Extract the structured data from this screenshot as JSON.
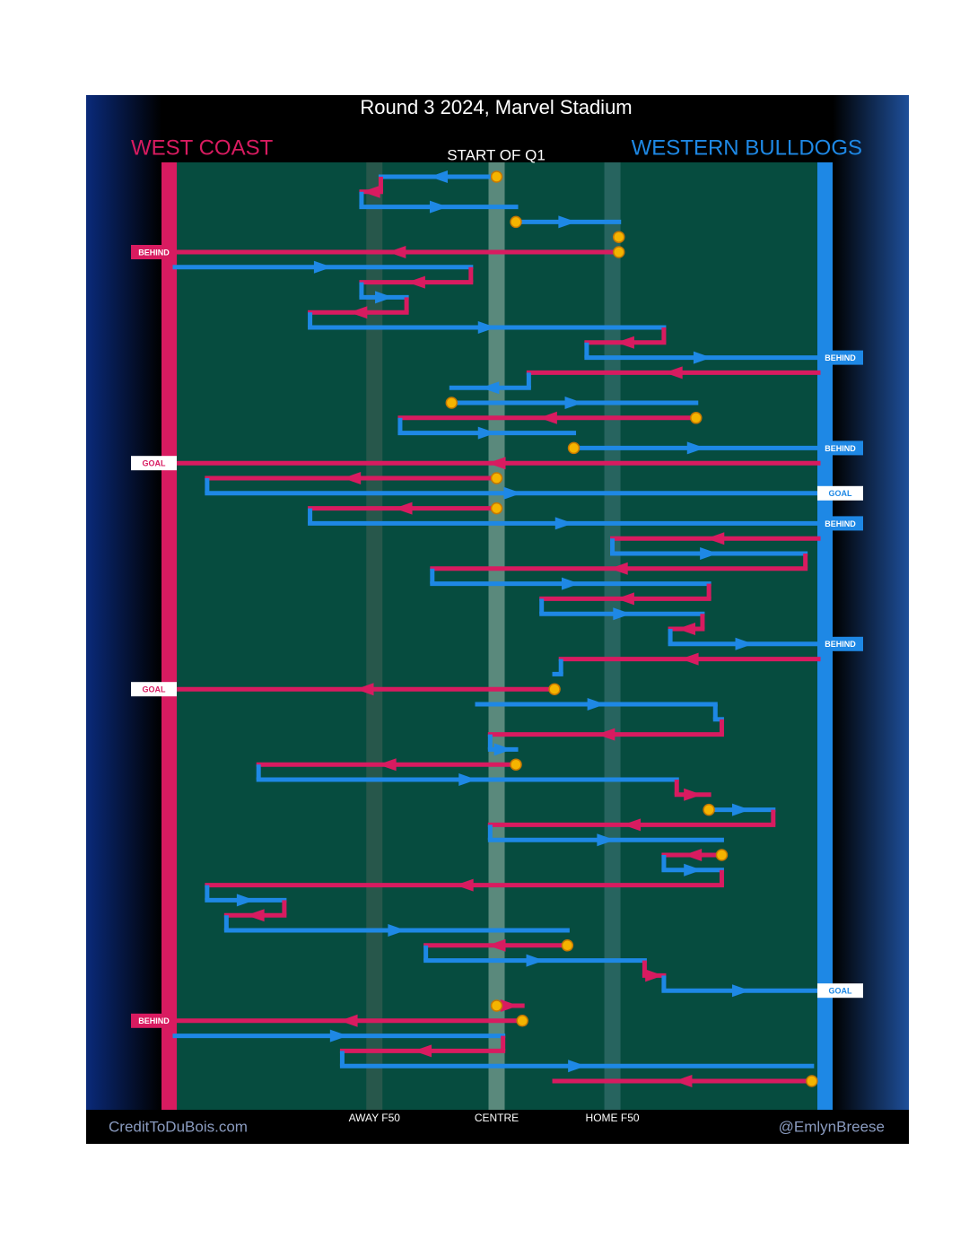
{
  "title": "Round 3 2024, Marvel Stadium",
  "teams": [
    {
      "name": "WEST COAST",
      "color": "#d81b60"
    },
    {
      "name": "WESTERN BULLDOGS",
      "color": "#1e88e5"
    }
  ],
  "period_label": "START OF Q1",
  "field_markers": [
    {
      "label": "AWAY F50",
      "value": 31
    },
    {
      "label": "CENTRE",
      "value": 50
    },
    {
      "label": "HOME F50",
      "value": 68
    }
  ],
  "credits": {
    "left": "CreditToDuBois.com",
    "right": "@EmlynBreese"
  },
  "chains": [
    {
      "team": 1,
      "from": 50,
      "to": 32,
      "stoppage": true
    },
    {
      "team": 0,
      "from": 32,
      "to": 29
    },
    {
      "team": 1,
      "from": 29,
      "to": 53
    },
    {
      "team": 1,
      "from": 53,
      "to": 69,
      "stoppage": true
    },
    {
      "team": 0,
      "from": 69,
      "to": 69,
      "stoppage": true
    },
    {
      "team": 0,
      "from": 69,
      "to": 0,
      "stoppage": true,
      "result": "BEHIND"
    },
    {
      "team": 1,
      "from": 0,
      "to": 46
    },
    {
      "team": 0,
      "from": 46,
      "to": 29
    },
    {
      "team": 1,
      "from": 29,
      "to": 36
    },
    {
      "team": 0,
      "from": 36,
      "to": 21
    },
    {
      "team": 1,
      "from": 21,
      "to": 76
    },
    {
      "team": 0,
      "from": 76,
      "to": 64
    },
    {
      "team": 1,
      "from": 64,
      "to": 100,
      "result": "BEHIND"
    },
    {
      "team": 0,
      "from": 100,
      "to": 55
    },
    {
      "team": 1,
      "from": 55,
      "to": 43
    },
    {
      "team": 1,
      "from": 43,
      "to": 81,
      "stoppage": true
    },
    {
      "team": 0,
      "from": 81,
      "to": 35,
      "stoppage": true
    },
    {
      "team": 1,
      "from": 35,
      "to": 62
    },
    {
      "team": 1,
      "from": 62,
      "to": 100,
      "stoppage": true,
      "result": "BEHIND"
    },
    {
      "team": 0,
      "from": 100,
      "to": 0,
      "result": "GOAL"
    },
    {
      "team": 0,
      "from": 50,
      "to": 5,
      "stoppage": true
    },
    {
      "team": 1,
      "from": 5,
      "to": 100,
      "result": "GOAL"
    },
    {
      "team": 0,
      "from": 50,
      "to": 21,
      "stoppage": true
    },
    {
      "team": 1,
      "from": 21,
      "to": 100,
      "result": "BEHIND"
    },
    {
      "team": 0,
      "from": 100,
      "to": 68
    },
    {
      "team": 1,
      "from": 68,
      "to": 98
    },
    {
      "team": 0,
      "from": 98,
      "to": 40
    },
    {
      "team": 1,
      "from": 40,
      "to": 83
    },
    {
      "team": 0,
      "from": 83,
      "to": 57
    },
    {
      "team": 1,
      "from": 57,
      "to": 82
    },
    {
      "team": 0,
      "from": 82,
      "to": 77
    },
    {
      "team": 1,
      "from": 77,
      "to": 100,
      "result": "BEHIND"
    },
    {
      "team": 0,
      "from": 100,
      "to": 60
    },
    {
      "team": 1,
      "from": 60,
      "to": 59
    },
    {
      "team": 0,
      "from": 59,
      "to": 0,
      "stoppage": true,
      "result": "GOAL"
    },
    {
      "team": 1,
      "from": 47,
      "to": 84
    },
    {
      "team": 1,
      "from": 84,
      "to": 85
    },
    {
      "team": 0,
      "from": 85,
      "to": 49
    },
    {
      "team": 1,
      "from": 49,
      "to": 53
    },
    {
      "team": 0,
      "from": 53,
      "to": 13,
      "stoppage": true
    },
    {
      "team": 1,
      "from": 13,
      "to": 78
    },
    {
      "team": 0,
      "from": 78,
      "to": 83
    },
    {
      "team": 1,
      "from": 83,
      "to": 93,
      "stoppage": true
    },
    {
      "team": 0,
      "from": 93,
      "to": 49
    },
    {
      "team": 1,
      "from": 49,
      "to": 85
    },
    {
      "team": 0,
      "from": 85,
      "to": 76,
      "stoppage": true
    },
    {
      "team": 1,
      "from": 76,
      "to": 85
    },
    {
      "team": 0,
      "from": 85,
      "to": 5
    },
    {
      "team": 1,
      "from": 5,
      "to": 17
    },
    {
      "team": 0,
      "from": 17,
      "to": 8
    },
    {
      "team": 1,
      "from": 8,
      "to": 61
    },
    {
      "team": 0,
      "from": 61,
      "to": 39,
      "stoppage": true
    },
    {
      "team": 1,
      "from": 39,
      "to": 73
    },
    {
      "team": 0,
      "from": 73,
      "to": 76
    },
    {
      "team": 1,
      "from": 76,
      "to": 100,
      "result": "GOAL"
    },
    {
      "team": 0,
      "from": 50,
      "to": 54,
      "stoppage": true
    },
    {
      "team": 0,
      "from": 54,
      "to": 0,
      "stoppage": true,
      "result": "BEHIND"
    },
    {
      "team": 1,
      "from": 0,
      "to": 51
    },
    {
      "team": 0,
      "from": 51,
      "to": 26
    },
    {
      "team": 1,
      "from": 26,
      "to": 99
    },
    {
      "team": 0,
      "from": 99,
      "to": 59,
      "stoppage": true
    }
  ]
}
